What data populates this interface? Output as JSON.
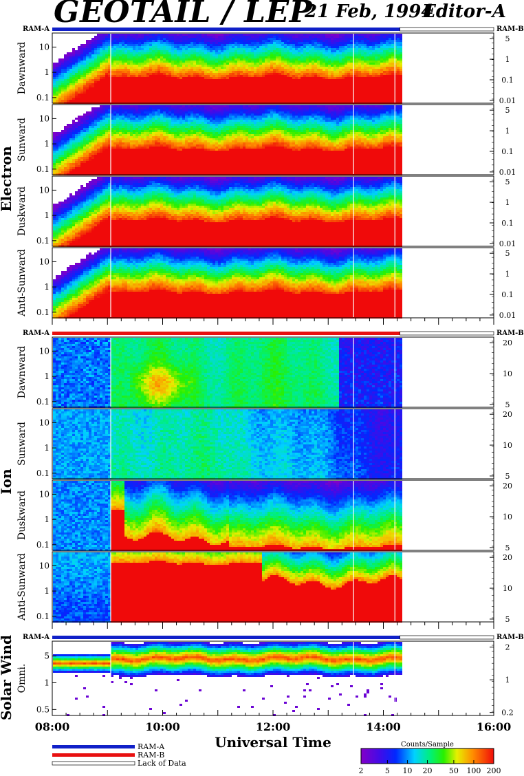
{
  "header": {
    "title": "GEOTAIL / LEP",
    "date": "21 Feb, 1994",
    "editor": "Editor-A"
  },
  "colors": {
    "ram_a": "#1020c8",
    "ram_b": "#e81010",
    "lack_of_data": "#ffffff"
  },
  "chart_data": {
    "type": "heatmap",
    "xlabel": "Universal Time",
    "x_ticks": [
      "08:00",
      "10:00",
      "12:00",
      "14:00",
      "16:00"
    ],
    "x_range_hours": [
      8,
      16
    ],
    "data_end_hour": 14.3,
    "colorbar": {
      "label": "Counts/Sample",
      "ticks": [
        "2",
        "5",
        "10",
        "20",
        "50",
        "100",
        "200"
      ],
      "scale": "log",
      "range": [
        2,
        200
      ]
    },
    "legend": [
      "RAM-A",
      "RAM-B",
      "Lack of Data"
    ],
    "groups": [
      {
        "name": "Electron",
        "ram_left": "RAM-A",
        "ram_right": "RAM-B",
        "ram_mode": "A",
        "panels": [
          {
            "label": "Dawnward",
            "left_ticks": [
              "10",
              "1",
              "0.1"
            ],
            "right_ticks": [
              "5",
              "1",
              "0.1",
              "0.01"
            ],
            "style": "electron"
          },
          {
            "label": "Sunward",
            "left_ticks": [
              "10",
              "1",
              "0.1"
            ],
            "right_ticks": [
              "5",
              "1",
              "0.1",
              "0.01"
            ],
            "style": "electron"
          },
          {
            "label": "Duskward",
            "left_ticks": [
              "10",
              "1",
              "0.1"
            ],
            "right_ticks": [
              "5",
              "1",
              "0.1",
              "0.01"
            ],
            "style": "electron"
          },
          {
            "label": "Anti-Sunward",
            "left_ticks": [
              "10",
              "1",
              "0.1"
            ],
            "right_ticks": [
              "5",
              "1",
              "0.1",
              "0.01"
            ],
            "style": "electron"
          }
        ]
      },
      {
        "name": "Ion",
        "ram_left": "RAM-A",
        "ram_right": "RAM-B",
        "ram_mode": "B",
        "panels": [
          {
            "label": "Dawnward",
            "left_ticks": [
              "10",
              "1",
              "0.1"
            ],
            "right_ticks": [
              "20",
              "10",
              "5"
            ],
            "style": "ion_dawn"
          },
          {
            "label": "Sunward",
            "left_ticks": [
              "10",
              "1",
              "0.1"
            ],
            "right_ticks": [
              "20",
              "10",
              "5"
            ],
            "style": "ion_sun"
          },
          {
            "label": "Duskward",
            "left_ticks": [
              "10",
              "1",
              "0.1"
            ],
            "right_ticks": [
              "20",
              "10",
              "5"
            ],
            "style": "ion_dusk"
          },
          {
            "label": "Anti-Sunward",
            "left_ticks": [
              "10",
              "1",
              "0.1"
            ],
            "right_ticks": [
              "20",
              "10",
              "5"
            ],
            "style": "ion_anti"
          }
        ]
      },
      {
        "name": "Solar Wind",
        "ram_left": "RAM-A",
        "ram_right": "RAM-B",
        "ram_mode": "A",
        "panels": [
          {
            "label": "Omni.",
            "left_ticks": [
              "5",
              "1",
              "0.5"
            ],
            "right_ticks": [
              "2",
              "1",
              "0.2"
            ],
            "style": "sw"
          }
        ]
      }
    ]
  }
}
